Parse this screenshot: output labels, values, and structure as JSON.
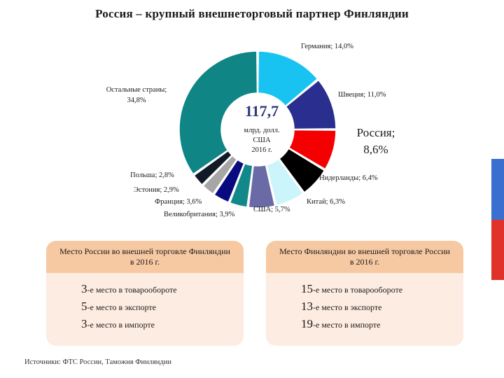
{
  "title": "Россия – крупный внешнеторговый партнер Финляндии",
  "chart_data": {
    "type": "pie",
    "variant": "donut",
    "center_value": "117,7",
    "center_unit_lines": [
      "млрд. долл.",
      "США",
      "2016 г."
    ],
    "slices": [
      {
        "label": "Германия",
        "value": 14.0,
        "value_label": "Германия; 14,0%",
        "color": "#19c3f1"
      },
      {
        "label": "Швеция",
        "value": 11.0,
        "value_label": "Швеция; 11,0%",
        "color": "#2a2f8f"
      },
      {
        "label": "Россия",
        "value": 8.6,
        "value_label": "Россия;",
        "value_label2": "8,6%",
        "color": "#f40000"
      },
      {
        "label": "Нидерланды",
        "value": 6.4,
        "value_label": "Нидерланды; 6,4%",
        "color": "#000000"
      },
      {
        "label": "Китай",
        "value": 6.3,
        "value_label": "Китай; 6,3%",
        "color": "#ccf5fb"
      },
      {
        "label": "США",
        "value": 5.7,
        "value_label": "США; 5,7%",
        "color": "#6a6aa6"
      },
      {
        "label": "Великобритания",
        "value": 3.9,
        "value_label": "Великобритания; 3,9%",
        "color": "#12888a"
      },
      {
        "label": "Франция",
        "value": 3.6,
        "value_label": "Франция; 3,6%",
        "color": "#0a0a80"
      },
      {
        "label": "Эстония",
        "value": 2.9,
        "value_label": "Эстония; 2,9%",
        "color": "#a6a6a6"
      },
      {
        "label": "Польша",
        "value": 2.8,
        "value_label": "Польша; 2,8%",
        "color": "#121a28"
      },
      {
        "label": "Остальные страны",
        "value": 34.8,
        "value_label": "Остальные страны;",
        "value_label2": "34,8%",
        "color": "#0f8585"
      }
    ]
  },
  "panels": [
    {
      "heading": "Место России во внешней торговле Финляндии в 2016 г.",
      "rows": [
        {
          "num": "3",
          "text": "-е место в товарообороте"
        },
        {
          "num": "5",
          "text": "-е место в экспорте"
        },
        {
          "num": "3",
          "text": "-е место в импорте"
        }
      ]
    },
    {
      "heading": "Место Финляндии во внешней торговле России в 2016 г.",
      "rows": [
        {
          "num": "15",
          "text": "-е место в товарообороте"
        },
        {
          "num": "13",
          "text": "-е место в экспорте"
        },
        {
          "num": "19",
          "text": "-е место в импорте"
        }
      ]
    }
  ],
  "source": "Источники: ФТС России, Таможня Финляндии",
  "flag_colors": [
    "#ffffff",
    "#3a6fd0",
    "#e0322a"
  ]
}
